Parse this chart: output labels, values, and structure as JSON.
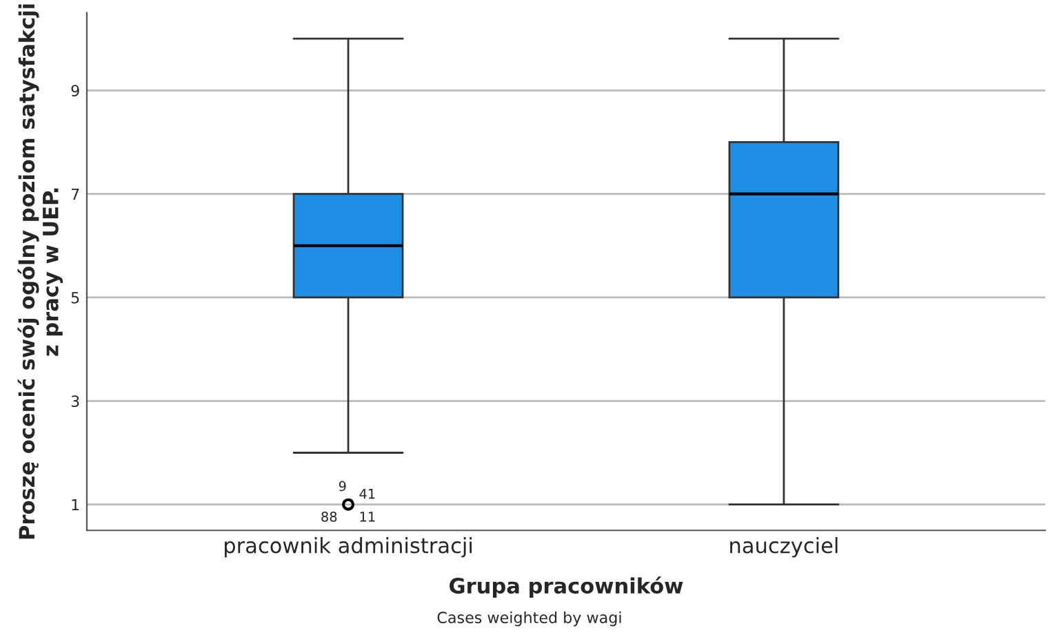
{
  "chart_data": {
    "type": "box",
    "xlabel": "Grupa pracowników",
    "ylabel": "Proszę ocenić swój ogólny poziom satysfakcji z pracy w UEP.",
    "categories": [
      "pracownik administracji",
      "nauczyciel"
    ],
    "color": "#1f8fe5",
    "boxes": [
      {
        "low": 2,
        "q1": 5,
        "median": 6,
        "q3": 7,
        "high": 10,
        "outliers": [
          1
        ]
      },
      {
        "low": 1,
        "q1": 5,
        "median": 7,
        "q3": 8,
        "high": 10
      }
    ],
    "ylim": [
      0.5,
      10.5
    ],
    "yticks": [
      1,
      3,
      5,
      7,
      9
    ],
    "grid": "y",
    "annotations": [
      "9",
      "41",
      "88",
      "11",
      "Cases weighted by wagi"
    ]
  }
}
